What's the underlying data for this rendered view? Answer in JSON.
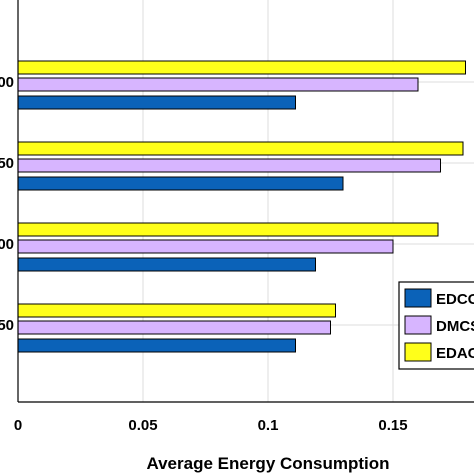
{
  "chart_data": {
    "type": "bar",
    "orientation": "horizontal",
    "title": "",
    "xlabel": "Average Energy Consumption",
    "ylabel": "",
    "xlim": [
      0,
      0.18
    ],
    "xticks": [
      "0",
      "0.05",
      "0.1",
      "0.15"
    ],
    "grid": true,
    "legend_position": "bottom-right",
    "categories": [
      "00",
      "50",
      "00",
      "50"
    ],
    "series": [
      {
        "name": "EDCO",
        "color": "#0b62b8",
        "values": [
          0.111,
          0.13,
          0.119,
          0.111
        ]
      },
      {
        "name": "DMCS",
        "color": "#d7b5ff",
        "values": [
          0.16,
          0.169,
          0.15,
          0.125
        ]
      },
      {
        "name": "EDAC",
        "color": "#ffff1a",
        "values": [
          0.179,
          0.178,
          0.168,
          0.127
        ]
      }
    ]
  }
}
